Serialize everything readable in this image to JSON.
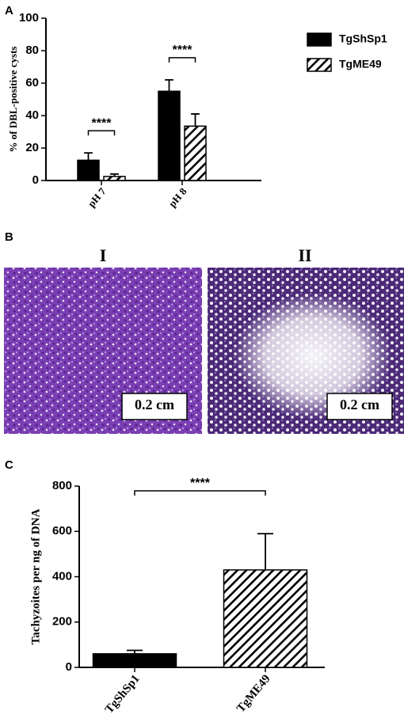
{
  "chart_data": [
    {
      "type": "bar",
      "panel_label": "A",
      "y_label": "% of DBL-positive cysts",
      "categories": [
        "pH 7",
        "pH 8"
      ],
      "series": [
        {
          "name": "TgShSp1",
          "color": "#000000",
          "style": "solid",
          "values": [
            12.5,
            55
          ],
          "errors": [
            4.5,
            7
          ]
        },
        {
          "name": "TgME49",
          "color": "#000000",
          "style": "hatch",
          "values": [
            2.5,
            33.5
          ],
          "errors": [
            1.5,
            7.5
          ]
        }
      ],
      "ylim": [
        0,
        100
      ],
      "yticks": [
        0,
        20,
        40,
        60,
        80,
        100
      ],
      "legend": "right",
      "annotations": [
        {
          "text": "****",
          "category": 0
        },
        {
          "text": "****",
          "category": 1
        }
      ]
    },
    {
      "type": "bar",
      "panel_label": "C",
      "y_label": "Tachyzoites per ng of DNA",
      "categories": [
        "TgShSp1",
        "TgME49"
      ],
      "values": [
        60,
        430
      ],
      "errors": [
        15,
        160
      ],
      "color": "#000000",
      "styles": [
        "solid",
        "hatch"
      ],
      "ylim": [
        0,
        800
      ],
      "yticks": [
        0,
        200,
        400,
        600,
        800
      ],
      "annotations": [
        {
          "text": "****",
          "between": [
            0,
            1
          ]
        }
      ]
    }
  ],
  "image_panel": {
    "panel_label": "B",
    "images": [
      {
        "title": "I",
        "scale_bar": "0.2 cm"
      },
      {
        "title": "II",
        "scale_bar": "0.2 cm"
      }
    ]
  }
}
